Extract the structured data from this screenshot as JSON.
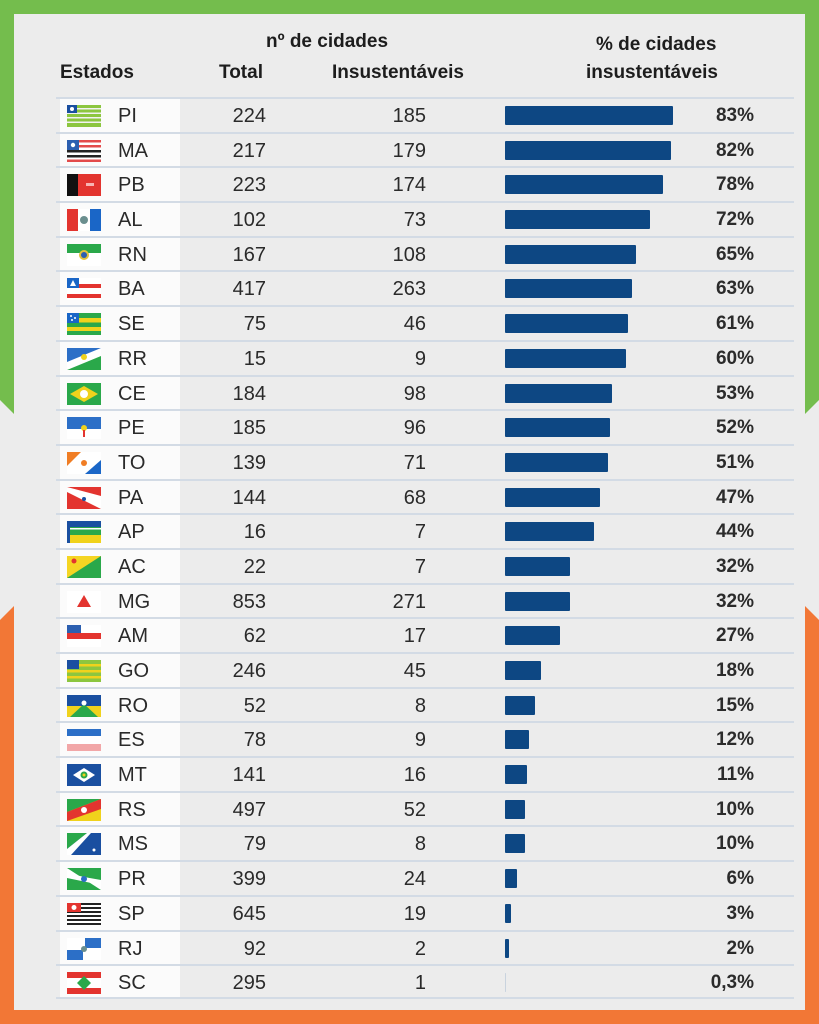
{
  "colors": {
    "border_top": "#74bd4d",
    "border_bottom": "#f27736",
    "bar": "#0d4783",
    "panel": "#ececec"
  },
  "header": {
    "estados": "Estados",
    "group": "nº de cidades",
    "total": "Total",
    "insustentaveis": "Insustentáveis",
    "pct_line1": "% de cidades",
    "pct_line2": "insustentáveis"
  },
  "chart_data": {
    "type": "bar",
    "orientation": "horizontal",
    "title": "% de cidades insustentáveis",
    "xlim": [
      0,
      100
    ],
    "grid": false,
    "columns": [
      "Estados",
      "Total",
      "Insustentáveis",
      "% de cidades insustentáveis"
    ],
    "rows": [
      {
        "state": "PI",
        "flag": "piaui-flag-icon",
        "total": "224",
        "insust": "185",
        "pct": 83,
        "label": "83%"
      },
      {
        "state": "MA",
        "flag": "maranhao-flag-icon",
        "total": "217",
        "insust": "179",
        "pct": 82,
        "label": "82%"
      },
      {
        "state": "PB",
        "flag": "paraiba-flag-icon",
        "total": "223",
        "insust": "174",
        "pct": 78,
        "label": "78%"
      },
      {
        "state": "AL",
        "flag": "alagoas-flag-icon",
        "total": "102",
        "insust": "73",
        "pct": 72,
        "label": "72%"
      },
      {
        "state": "RN",
        "flag": "rio-grande-do-norte-flag-icon",
        "total": "167",
        "insust": "108",
        "pct": 65,
        "label": "65%"
      },
      {
        "state": "BA",
        "flag": "bahia-flag-icon",
        "total": "417",
        "insust": "263",
        "pct": 63,
        "label": "63%"
      },
      {
        "state": "SE",
        "flag": "sergipe-flag-icon",
        "total": "75",
        "insust": "46",
        "pct": 61,
        "label": "61%"
      },
      {
        "state": "RR",
        "flag": "roraima-flag-icon",
        "total": "15",
        "insust": "9",
        "pct": 60,
        "label": "60%"
      },
      {
        "state": "CE",
        "flag": "ceara-flag-icon",
        "total": "184",
        "insust": "98",
        "pct": 53,
        "label": "53%"
      },
      {
        "state": "PE",
        "flag": "pernambuco-flag-icon",
        "total": "185",
        "insust": "96",
        "pct": 52,
        "label": "52%"
      },
      {
        "state": "TO",
        "flag": "tocantins-flag-icon",
        "total": "139",
        "insust": "71",
        "pct": 51,
        "label": "51%"
      },
      {
        "state": "PA",
        "flag": "para-flag-icon",
        "total": "144",
        "insust": "68",
        "pct": 47,
        "label": "47%"
      },
      {
        "state": "AP",
        "flag": "amapa-flag-icon",
        "total": "16",
        "insust": "7",
        "pct": 44,
        "label": "44%"
      },
      {
        "state": "AC",
        "flag": "acre-flag-icon",
        "total": "22",
        "insust": "7",
        "pct": 32,
        "label": "32%"
      },
      {
        "state": "MG",
        "flag": "minas-gerais-flag-icon",
        "total": "853",
        "insust": "271",
        "pct": 32,
        "label": "32%"
      },
      {
        "state": "AM",
        "flag": "amazonas-flag-icon",
        "total": "62",
        "insust": "17",
        "pct": 27,
        "label": "27%"
      },
      {
        "state": "GO",
        "flag": "goias-flag-icon",
        "total": "246",
        "insust": "45",
        "pct": 18,
        "label": "18%"
      },
      {
        "state": "RO",
        "flag": "rondonia-flag-icon",
        "total": "52",
        "insust": "8",
        "pct": 15,
        "label": "15%"
      },
      {
        "state": "ES",
        "flag": "espirito-santo-flag-icon",
        "total": "78",
        "insust": "9",
        "pct": 12,
        "label": "12%"
      },
      {
        "state": "MT",
        "flag": "mato-grosso-flag-icon",
        "total": "141",
        "insust": "16",
        "pct": 11,
        "label": "11%"
      },
      {
        "state": "RS",
        "flag": "rio-grande-do-sul-flag-icon",
        "total": "497",
        "insust": "52",
        "pct": 10,
        "label": "10%"
      },
      {
        "state": "MS",
        "flag": "mato-grosso-do-sul-flag-icon",
        "total": "79",
        "insust": "8",
        "pct": 10,
        "label": "10%"
      },
      {
        "state": "PR",
        "flag": "parana-flag-icon",
        "total": "399",
        "insust": "24",
        "pct": 6,
        "label": "6%"
      },
      {
        "state": "SP",
        "flag": "sao-paulo-flag-icon",
        "total": "645",
        "insust": "19",
        "pct": 3,
        "label": "3%"
      },
      {
        "state": "RJ",
        "flag": "rio-de-janeiro-flag-icon",
        "total": "92",
        "insust": "2",
        "pct": 2,
        "label": "2%"
      },
      {
        "state": "SC",
        "flag": "santa-catarina-flag-icon",
        "total": "295",
        "insust": "1",
        "pct": 0.3,
        "label": "0,3%"
      }
    ]
  }
}
